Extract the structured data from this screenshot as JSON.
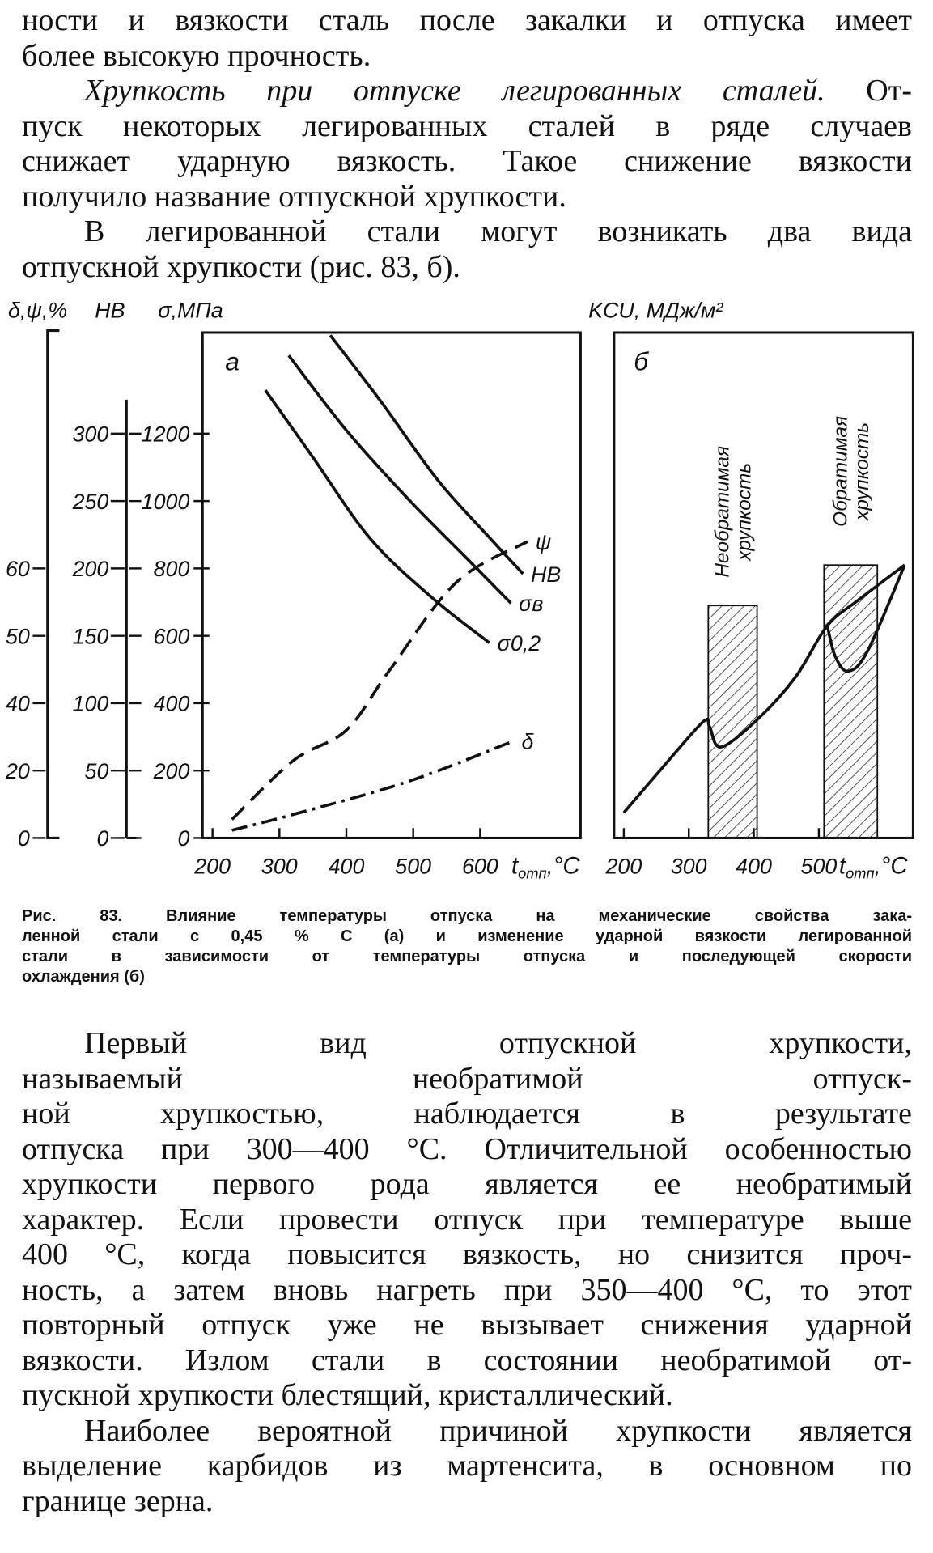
{
  "text_top": [
    {
      "lines": [
        "ности и вязкости сталь после закалки и отпуска имеет",
        "более высокую прочность."
      ]
    },
    {
      "lead": "Хрупкость при отпуске легированных сталей.",
      "lines": [
        "От-",
        "пуск некоторых легированных сталей в ряде случаев",
        "снижает ударную вязкость. Такое снижение вязкости",
        "получило название отпускной хрупкости."
      ]
    },
    {
      "lines": [
        "В легированной стали могут возникать два вида",
        "отпускной хрупкости (рис. 83, б)."
      ]
    }
  ],
  "figure": {
    "panel_a": {
      "letter": "а",
      "xlim": [
        185,
        750
      ],
      "xticks": [
        200,
        300,
        400,
        500,
        600
      ],
      "x_label": {
        "symbol": "t",
        "sub": "отп",
        "unit": ",°С"
      },
      "axes": {
        "pct": {
          "title": "δ,ψ,%",
          "ticks": [
            0,
            20,
            40,
            50,
            60
          ]
        },
        "hb": {
          "title": "HB",
          "ylim": [
            0,
            375
          ],
          "ticks": [
            0,
            50,
            100,
            150,
            200,
            250,
            300
          ]
        },
        "mpa": {
          "title": "σ,МПа",
          "ylim": [
            0,
            1500
          ],
          "ticks": [
            0,
            200,
            400,
            600,
            800,
            1000,
            1200
          ]
        }
      },
      "color": "#111",
      "series": [
        {
          "name": "ψ",
          "axis": "pct",
          "dash": "dashed",
          "x": [
            229,
            321,
            400,
            464,
            564,
            671
          ],
          "values": [
            5.5,
            23,
            32,
            44.8,
            57.9,
            64
          ]
        },
        {
          "name": "HB",
          "axis": "hb",
          "dash": "solid",
          "x": [
            376,
            450,
            536,
            610,
            664
          ],
          "values": [
            373,
            325,
            266,
            225,
            196
          ]
        },
        {
          "name": "σв",
          "axis": "mpa",
          "dash": "solid",
          "x": [
            314,
            400,
            493,
            580,
            646
          ],
          "values": [
            1432,
            1210,
            1005,
            830,
            697
          ]
        },
        {
          "name": "σ0,2",
          "axis": "mpa",
          "dash": "solid",
          "x": [
            279,
            350,
            436,
            530,
            614
          ],
          "values": [
            1329,
            1130,
            888,
            710,
            579
          ]
        },
        {
          "name": "δ",
          "axis": "pct",
          "dash": "dashdot",
          "x": [
            229,
            321,
            493,
            650
          ],
          "values": [
            2.3,
            7,
            16.8,
            28.8
          ]
        }
      ]
    },
    "panel_b": {
      "letter": "б",
      "y_title": "KCU, МДж/м²",
      "ylim": [
        0,
        10
      ],
      "xlim": [
        185,
        645
      ],
      "xticks": [
        200,
        300,
        400,
        500
      ],
      "x_label": {
        "symbol": "t",
        "sub": "отп",
        "unit": ",°С"
      },
      "color": "#111",
      "series": [
        {
          "x": [
            200,
            260,
            322,
            332,
            350,
            410,
            465,
            513,
            560,
            632
          ],
          "values": [
            0.5,
            1.4,
            2.3,
            2.2,
            1.8,
            2.4,
            3.2,
            4.2,
            4.7,
            5.4
          ]
        },
        {
          "x": [
            513,
            525,
            545,
            575,
            632
          ],
          "values": [
            4.2,
            3.6,
            3.3,
            3.7,
            5.4
          ]
        }
      ],
      "zones": [
        {
          "x": [
            330,
            405
          ],
          "top": 4.6,
          "label": [
            "Необратимая",
            "хрупкость"
          ]
        },
        {
          "x": [
            508,
            590
          ],
          "top": 5.4,
          "label": [
            "Обратимая",
            "хрупкость"
          ]
        }
      ]
    },
    "caption": [
      "Рис. 83. Влияние температуры отпуска на механические свойства зака-",
      "ленной стали с 0,45 % С (а) и изменение ударной вязкости легированной",
      "стали в зависимости от температуры отпуска и последующей скорости",
      "охлаждения (б)"
    ]
  },
  "text_bottom": [
    {
      "lines": [
        "Первый вид отпускной хрупкости,",
        "называемый необратимой отпуск-",
        "ной хрупкостью, наблюдается в результате",
        "отпуска при 300—400 °С. Отличительной особенностью",
        "хрупкости первого рода является ее необратимый",
        "характер. Если провести отпуск при температуре выше",
        "400 °С, когда повысится вязкость, но снизится проч-",
        "ность, а затем вновь нагреть при 350—400 °С, то этот",
        "повторный отпуск уже не вызывает снижения ударной",
        "вязкости. Излом стали в состоянии необратимой от-",
        "пускной хрупкости блестящий, кристаллический."
      ]
    },
    {
      "lines": [
        "Наиболее вероятной причиной хрупкости является",
        "выделение карбидов из мартенсита, в основном по",
        "границе зерна."
      ]
    }
  ]
}
